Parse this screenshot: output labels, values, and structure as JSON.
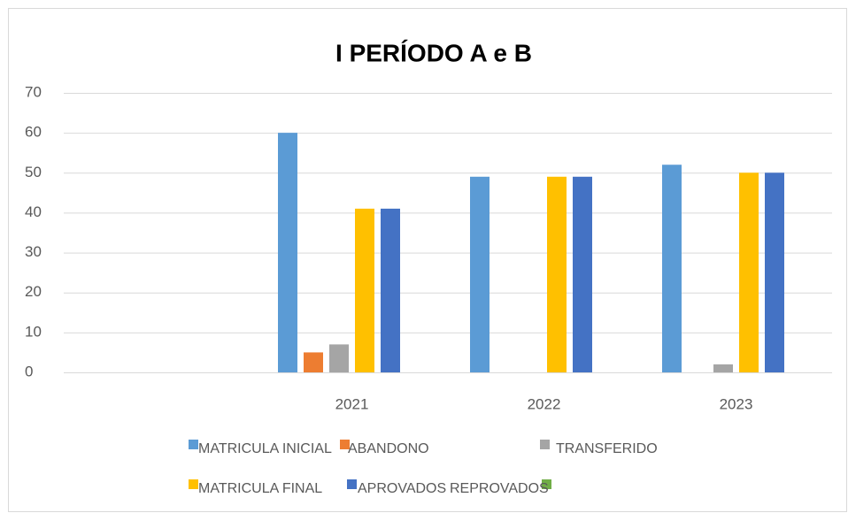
{
  "chart_data": {
    "type": "bar",
    "title": "I PERÍODO A e B",
    "categories": [
      null,
      "2021",
      "2022",
      "2023"
    ],
    "series": [
      {
        "name": "MATRICULA INICIAL",
        "color": "#5b9bd5",
        "values": [
          null,
          60,
          49,
          52
        ]
      },
      {
        "name": "ABANDONO",
        "color": "#ed7d31",
        "values": [
          null,
          5,
          0,
          0
        ]
      },
      {
        "name": "TRANSFERIDO",
        "color": "#a5a5a5",
        "values": [
          null,
          7,
          0,
          2
        ]
      },
      {
        "name": "MATRICULA FINAL",
        "color": "#ffc000",
        "values": [
          null,
          41,
          49,
          50
        ]
      },
      {
        "name": "APROVADOS",
        "color": "#4472c4",
        "values": [
          null,
          41,
          49,
          50
        ]
      },
      {
        "name": "REPROVADOS",
        "color": "#70ad47",
        "values": [
          null,
          0,
          0,
          0
        ]
      }
    ],
    "ylim": [
      0,
      70
    ],
    "yticks": [
      0,
      10,
      20,
      30,
      40,
      50,
      60,
      70
    ],
    "grid": true,
    "legend": "bottom"
  }
}
